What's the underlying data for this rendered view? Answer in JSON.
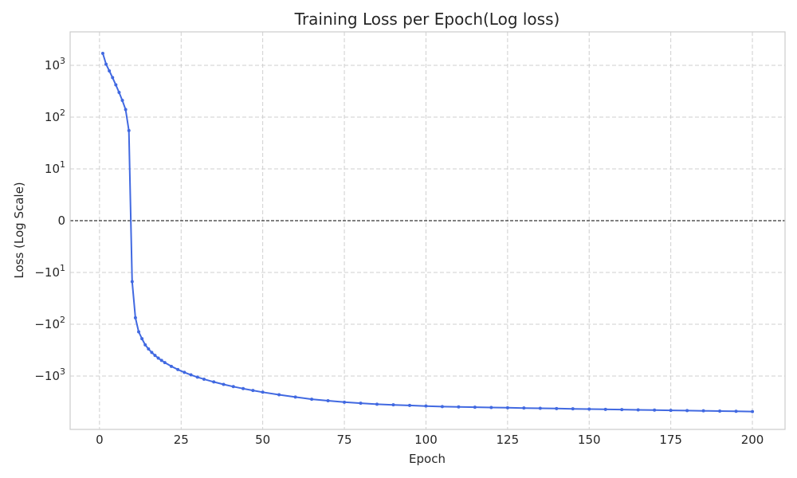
{
  "chart_data": {
    "type": "line",
    "title": "Training Loss per Epoch(Log loss)",
    "xlabel": "Epoch",
    "ylabel": "Loss (Log Scale)",
    "xlim": [
      -9,
      210
    ],
    "x_ticks": [
      0,
      25,
      50,
      75,
      100,
      125,
      150,
      175,
      200
    ],
    "y_scale": "symlog",
    "y_ticks": [
      {
        "value": 1000,
        "base": "10",
        "exp": "3"
      },
      {
        "value": 100,
        "base": "10",
        "exp": "2"
      },
      {
        "value": 10,
        "base": "10",
        "exp": "1"
      },
      {
        "value": 0,
        "base": "0",
        "exp": ""
      },
      {
        "value": -10,
        "base": "−10",
        "exp": "1"
      },
      {
        "value": -100,
        "base": "−10",
        "exp": "2"
      },
      {
        "value": -1000,
        "base": "−10",
        "exp": "3"
      }
    ],
    "grid": true,
    "zero_line": true,
    "color": "#4169e1",
    "series": [
      {
        "x": [
          1,
          2,
          3,
          4,
          5,
          6,
          7,
          8,
          9,
          10,
          11,
          12,
          13,
          14,
          15,
          16,
          17,
          18,
          19,
          20,
          22,
          24,
          26,
          28,
          30,
          32,
          35,
          38,
          41,
          44,
          47,
          50,
          55,
          60,
          65,
          70,
          75,
          80,
          85,
          90,
          95,
          100,
          105,
          110,
          115,
          120,
          125,
          130,
          135,
          140,
          145,
          150,
          155,
          160,
          165,
          170,
          175,
          180,
          185,
          190,
          195,
          200
        ],
        "y": [
          1700,
          1050,
          780,
          580,
          420,
          300,
          210,
          140,
          55,
          -15,
          -75,
          -140,
          -190,
          -250,
          -300,
          -350,
          -400,
          -450,
          -500,
          -550,
          -650,
          -750,
          -850,
          -950,
          -1050,
          -1150,
          -1300,
          -1450,
          -1600,
          -1750,
          -1900,
          -2050,
          -2300,
          -2550,
          -2800,
          -3000,
          -3200,
          -3350,
          -3500,
          -3600,
          -3700,
          -3800,
          -3900,
          -3950,
          -4000,
          -4050,
          -4100,
          -4150,
          -4200,
          -4250,
          -4300,
          -4350,
          -4400,
          -4450,
          -4500,
          -4550,
          -4600,
          -4650,
          -4700,
          -4750,
          -4800,
          -4850
        ]
      }
    ]
  }
}
